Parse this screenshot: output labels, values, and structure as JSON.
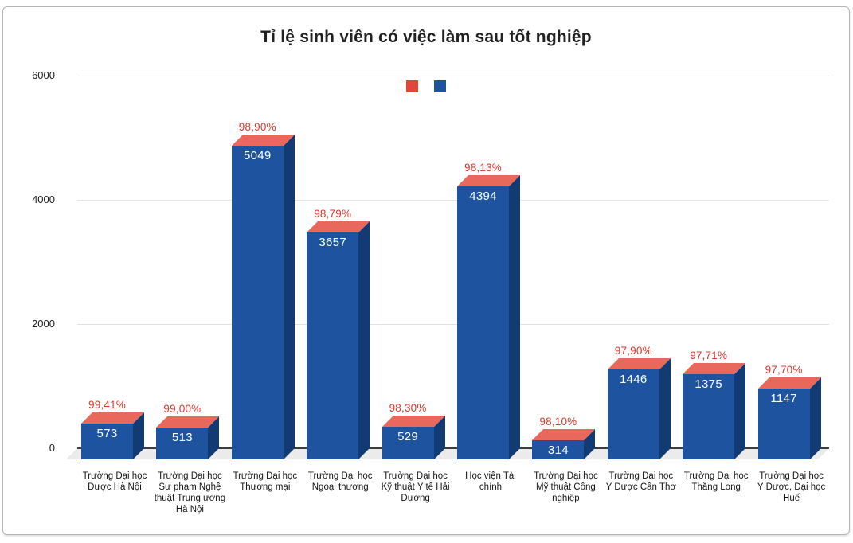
{
  "chart_data": {
    "type": "bar",
    "title": "Tỉ lệ sinh viên có việc làm sau tốt nghiệp",
    "categories": [
      "Trường Đại học Dược Hà Nội",
      "Trường Đại học Sư phạm Nghệ thuật Trung ương Hà Nội",
      "Trường Đại học Thương mại",
      "Trường Đại học Ngoại thương",
      "Trường Đại học Kỹ thuật Y tế Hải Dương",
      "Học viện Tài chính",
      "Trường Đại học Mỹ thuật Công nghiệp",
      "Trường Đại học Y Dược Cần Thơ",
      "Trường Đại học Thăng Long",
      "Trường Đại học Y Dược, Đại học Huế"
    ],
    "series": [
      {
        "name": "graduate-count-bars",
        "values": [
          573,
          513,
          5049,
          3657,
          529,
          4394,
          314,
          1446,
          1375,
          1147
        ]
      },
      {
        "name": "employment-rate-labels",
        "values": [
          "99,41%",
          "99,00%",
          "98,90%",
          "98,79%",
          "98,30%",
          "98,13%",
          "98,10%",
          "97,90%",
          "97,71%",
          "97,70%"
        ]
      }
    ],
    "yticks": [
      0,
      2000,
      4000,
      6000
    ],
    "ylim": [
      0,
      6000
    ],
    "grid": true,
    "legend_position": "top-center",
    "legend_swatch_colors": [
      "#e2453a",
      "#1e549f"
    ],
    "colors": {
      "bar_front": "#1e549f",
      "bar_side": "#123a73",
      "bar_top": "#e8695c",
      "percent_text": "#dc392b",
      "value_text": "#ffffff"
    }
  }
}
